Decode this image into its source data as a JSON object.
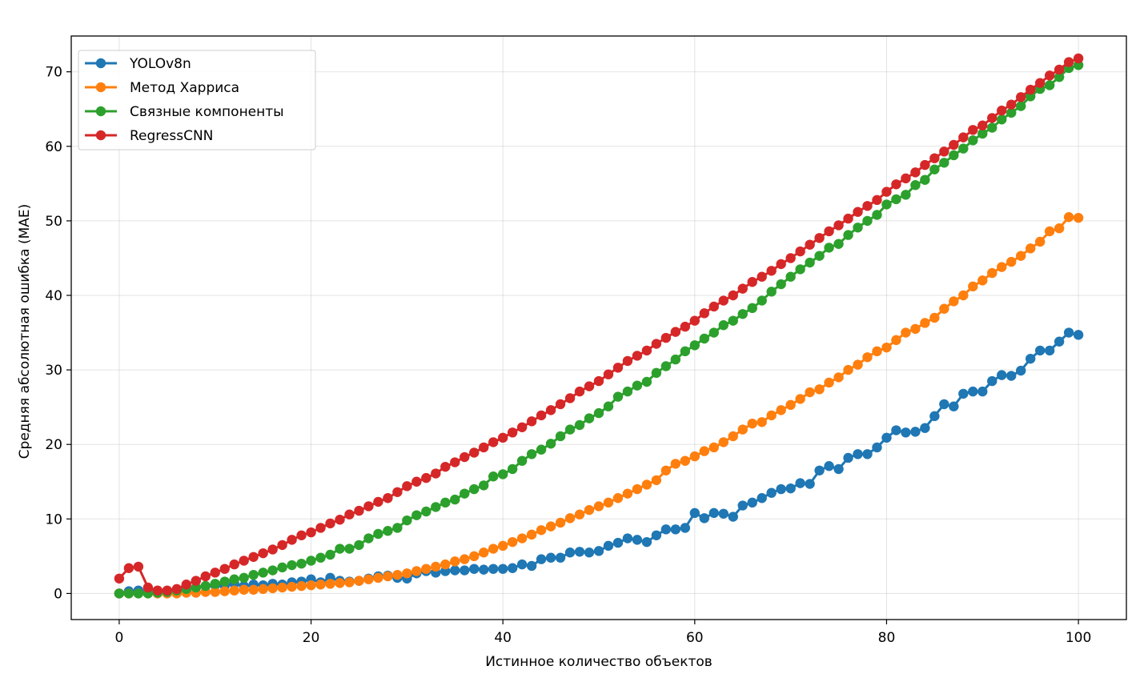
{
  "chart_data": {
    "type": "line",
    "title": "",
    "xlabel": "Истинное количество объектов",
    "ylabel": "Средняя абсолютная ошибка (MAE)",
    "xlim": [
      -5,
      105
    ],
    "ylim": [
      -3.5,
      74.8
    ],
    "xticks": [
      0,
      20,
      40,
      60,
      80,
      100
    ],
    "yticks": [
      0,
      10,
      20,
      30,
      40,
      50,
      60,
      70
    ],
    "grid": true,
    "legend_position": "upper-left",
    "x": [
      0,
      1,
      2,
      3,
      4,
      5,
      6,
      7,
      8,
      9,
      10,
      11,
      12,
      13,
      14,
      15,
      16,
      17,
      18,
      19,
      20,
      21,
      22,
      23,
      24,
      25,
      26,
      27,
      28,
      29,
      30,
      31,
      32,
      33,
      34,
      35,
      36,
      37,
      38,
      39,
      40,
      41,
      42,
      43,
      44,
      45,
      46,
      47,
      48,
      49,
      50,
      51,
      52,
      53,
      54,
      55,
      56,
      57,
      58,
      59,
      60,
      61,
      62,
      63,
      64,
      65,
      66,
      67,
      68,
      69,
      70,
      71,
      72,
      73,
      74,
      75,
      76,
      77,
      78,
      79,
      80,
      81,
      82,
      83,
      84,
      85,
      86,
      87,
      88,
      89,
      90,
      91,
      92,
      93,
      94,
      95,
      96,
      97,
      98,
      99,
      100
    ],
    "series": [
      {
        "name": "YOLOv8n",
        "color": "#1f77b4",
        "values": [
          0.0,
          0.3,
          0.4,
          0.2,
          0.2,
          0.2,
          0.3,
          0.5,
          0.8,
          1.0,
          1.1,
          1.0,
          1.3,
          1.0,
          1.2,
          1.1,
          1.3,
          1.2,
          1.5,
          1.6,
          1.9,
          1.5,
          2.1,
          1.7,
          1.6,
          1.7,
          2.0,
          2.3,
          2.4,
          2.1,
          2.0,
          2.7,
          3.0,
          2.8,
          3.0,
          3.1,
          3.1,
          3.3,
          3.2,
          3.3,
          3.3,
          3.4,
          3.9,
          3.7,
          4.6,
          4.8,
          4.8,
          5.5,
          5.6,
          5.5,
          5.7,
          6.4,
          6.8,
          7.4,
          7.2,
          6.9,
          7.8,
          8.6,
          8.6,
          8.8,
          10.8,
          10.1,
          10.8,
          10.7,
          10.3,
          11.8,
          12.2,
          12.8,
          13.5,
          14.0,
          14.1,
          14.8,
          14.7,
          16.5,
          17.1,
          16.7,
          18.2,
          18.7,
          18.7,
          19.6,
          20.9,
          21.9,
          21.6,
          21.7,
          22.2,
          23.8,
          25.4,
          25.1,
          26.8,
          27.1,
          27.1,
          28.5,
          29.3,
          29.2,
          29.9,
          31.5,
          32.6,
          32.6,
          33.8,
          35.0,
          34.7
        ]
      },
      {
        "name": "Метод Харриса",
        "color": "#ff7f0e",
        "values": [
          0.0,
          0.0,
          0.0,
          0.0,
          0.0,
          0.0,
          0.0,
          0.1,
          0.1,
          0.2,
          0.2,
          0.3,
          0.4,
          0.5,
          0.5,
          0.6,
          0.7,
          0.8,
          0.9,
          1.0,
          1.1,
          1.2,
          1.3,
          1.4,
          1.5,
          1.7,
          1.9,
          2.1,
          2.3,
          2.5,
          2.7,
          3.0,
          3.3,
          3.6,
          3.9,
          4.3,
          4.6,
          5.0,
          5.5,
          6.0,
          6.4,
          6.9,
          7.4,
          7.9,
          8.5,
          9.0,
          9.5,
          10.1,
          10.6,
          11.2,
          11.7,
          12.2,
          12.8,
          13.4,
          14.0,
          14.6,
          15.2,
          16.5,
          17.4,
          17.8,
          18.4,
          19.1,
          19.6,
          20.3,
          21.1,
          22.0,
          22.8,
          23.0,
          23.9,
          24.6,
          25.3,
          26.1,
          27.0,
          27.4,
          28.3,
          29.0,
          30.0,
          30.7,
          31.7,
          32.5,
          33.0,
          34.0,
          35.0,
          35.5,
          36.3,
          37.0,
          38.2,
          39.2,
          40.0,
          41.2,
          42.0,
          43.0,
          43.8,
          44.5,
          45.3,
          46.3,
          47.2,
          48.6,
          49.0,
          50.5,
          50.4
        ]
      },
      {
        "name": "Связные компоненты",
        "color": "#2ca02c",
        "values": [
          0.0,
          0.0,
          0.0,
          0.0,
          0.1,
          0.2,
          0.4,
          0.6,
          0.8,
          1.0,
          1.3,
          1.6,
          1.9,
          2.1,
          2.5,
          2.8,
          3.1,
          3.5,
          3.8,
          4.0,
          4.4,
          4.8,
          5.2,
          6.0,
          6.0,
          6.5,
          7.4,
          8.0,
          8.4,
          8.8,
          9.8,
          10.5,
          11.0,
          11.6,
          12.2,
          12.6,
          13.4,
          14.0,
          14.5,
          15.7,
          16.0,
          16.7,
          17.8,
          18.7,
          19.3,
          20.1,
          21.1,
          22.0,
          22.6,
          23.5,
          24.2,
          25.1,
          26.4,
          27.1,
          27.9,
          28.4,
          29.6,
          30.5,
          31.4,
          32.5,
          33.3,
          34.2,
          35.0,
          36.0,
          36.6,
          37.5,
          38.3,
          39.3,
          40.5,
          41.5,
          42.5,
          43.5,
          44.4,
          45.3,
          46.4,
          46.9,
          48.1,
          49.1,
          50.0,
          50.8,
          52.2,
          52.9,
          53.5,
          54.8,
          55.5,
          56.9,
          57.8,
          58.8,
          59.7,
          60.8,
          61.7,
          62.5,
          63.6,
          64.5,
          65.4,
          66.7,
          67.7,
          68.2,
          69.3,
          70.5,
          70.9
        ]
      },
      {
        "name": "RegressCNN",
        "color": "#d62728",
        "values": [
          2.0,
          3.4,
          3.6,
          0.8,
          0.4,
          0.4,
          0.6,
          1.2,
          1.7,
          2.3,
          2.8,
          3.3,
          3.9,
          4.4,
          4.9,
          5.4,
          5.9,
          6.5,
          7.2,
          7.8,
          8.2,
          8.8,
          9.4,
          9.9,
          10.6,
          11.1,
          11.7,
          12.3,
          12.8,
          13.6,
          14.4,
          15.0,
          15.5,
          16.1,
          17.0,
          17.6,
          18.3,
          18.9,
          19.6,
          20.3,
          20.9,
          21.6,
          22.3,
          23.1,
          23.9,
          24.6,
          25.4,
          26.2,
          27.1,
          27.8,
          28.5,
          29.4,
          30.3,
          31.2,
          31.9,
          32.6,
          33.5,
          34.3,
          35.1,
          35.8,
          36.6,
          37.6,
          38.5,
          39.3,
          40.0,
          40.9,
          41.8,
          42.5,
          43.3,
          44.2,
          45.0,
          45.9,
          46.8,
          47.7,
          48.6,
          49.4,
          50.3,
          51.2,
          52.0,
          52.8,
          53.9,
          54.9,
          55.7,
          56.5,
          57.5,
          58.4,
          59.3,
          60.2,
          61.2,
          62.2,
          62.8,
          63.8,
          64.8,
          65.6,
          66.6,
          67.6,
          68.5,
          69.5,
          70.3,
          71.3,
          71.8
        ]
      }
    ]
  }
}
